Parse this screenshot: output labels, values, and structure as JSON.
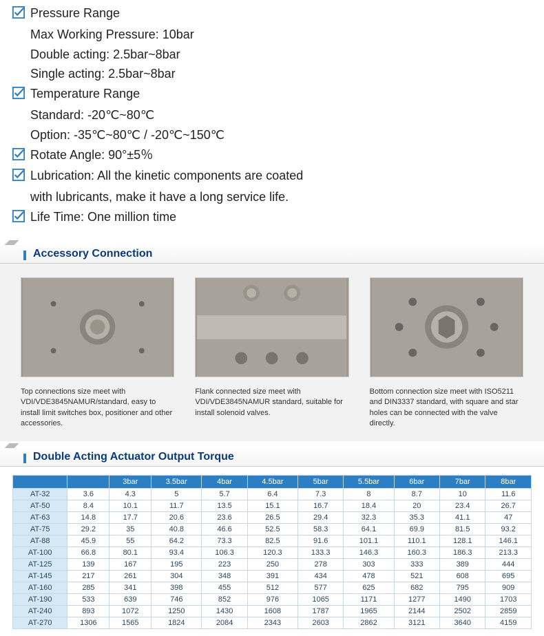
{
  "specs": {
    "pressure": {
      "title": "Pressure Range",
      "max": "Max Working Pressure: 10bar",
      "double": "Double acting: 2.5bar~8bar",
      "single": "Single acting: 2.5bar~8bar"
    },
    "temperature": {
      "title": "Temperature Range",
      "standard": "Standard: -20℃~80℃",
      "option": "Option: -35℃~80℃ / -20℃~150℃"
    },
    "rotate": "Rotate Angle: 90°±5％",
    "lubrication": {
      "line1": "Lubrication: All the kinetic components are coated",
      "line2": "with  lubricants, make it have a long service life."
    },
    "lifetime": "Life Time: One million time"
  },
  "accessory": {
    "heading": "Accessory Connection",
    "cols": [
      {
        "caption": "Top connections size meet with VDI/VDE3845NAMUR/standard, easy to install limit switches box, positioner and other accessories."
      },
      {
        "caption": "Flank connected size meet with VDI/VDE3845NAMUR standard, suitable for install solenoid valves."
      },
      {
        "caption": "Bottom connection size meet with ISO5211 and DIN3337 standard, with square and star holes can be connected with the valve directly."
      }
    ]
  },
  "torque": {
    "heading": "Double Acting Actuator Output Torque",
    "columns": [
      "",
      "",
      "3bar",
      "3.5bar",
      "4bar",
      "4.5bar",
      "5bar",
      "5.5bar",
      "6bar",
      "7bar",
      "8bar"
    ],
    "rows": [
      [
        "AT-32",
        "3.6",
        "4.3",
        "5",
        "5.7",
        "6.4",
        "7.3",
        "8",
        "8.7",
        "10",
        "11.6"
      ],
      [
        "AT-50",
        "8.4",
        "10.1",
        "11.7",
        "13.5",
        "15.1",
        "16.7",
        "18.4",
        "20",
        "23.4",
        "26.7"
      ],
      [
        "AT-63",
        "14.8",
        "17.7",
        "20.6",
        "23.6",
        "26.5",
        "29.4",
        "32.3",
        "35.3",
        "41.1",
        "47"
      ],
      [
        "AT-75",
        "29.2",
        "35",
        "40.8",
        "46.6",
        "52.5",
        "58.3",
        "64.1",
        "69.9",
        "81.5",
        "93.2"
      ],
      [
        "AT-88",
        "45.9",
        "55",
        "64.2",
        "73.3",
        "82.5",
        "91.6",
        "101.1",
        "110.1",
        "128.1",
        "146.1"
      ],
      [
        "AT-100",
        "66.8",
        "80.1",
        "93.4",
        "106.3",
        "120.3",
        "133.3",
        "146.3",
        "160.3",
        "186.3",
        "213.3"
      ],
      [
        "AT-125",
        "139",
        "167",
        "195",
        "223",
        "250",
        "278",
        "303",
        "333",
        "389",
        "444"
      ],
      [
        "AT-145",
        "217",
        "261",
        "304",
        "348",
        "391",
        "434",
        "478",
        "521",
        "608",
        "695"
      ],
      [
        "AT-160",
        "285",
        "341",
        "398",
        "455",
        "512",
        "577",
        "625",
        "682",
        "795",
        "909"
      ],
      [
        "AT-190",
        "533",
        "639",
        "746",
        "852",
        "976",
        "1065",
        "1171",
        "1277",
        "1490",
        "1703"
      ],
      [
        "AT-240",
        "893",
        "1072",
        "1250",
        "1430",
        "1608",
        "1787",
        "1965",
        "2144",
        "2502",
        "2859"
      ],
      [
        "AT-270",
        "1306",
        "1565",
        "1824",
        "2084",
        "2343",
        "2603",
        "2862",
        "3121",
        "3640",
        "4159"
      ]
    ]
  },
  "colors": {
    "accent": "#2d7fc3",
    "heading": "#0a3a78",
    "table_header_bg": "#2d7fc3",
    "model_col_bg": "#d5e8f5",
    "cell_border": "#c5d6e6",
    "accessory_bg": "#f2f2f2"
  }
}
